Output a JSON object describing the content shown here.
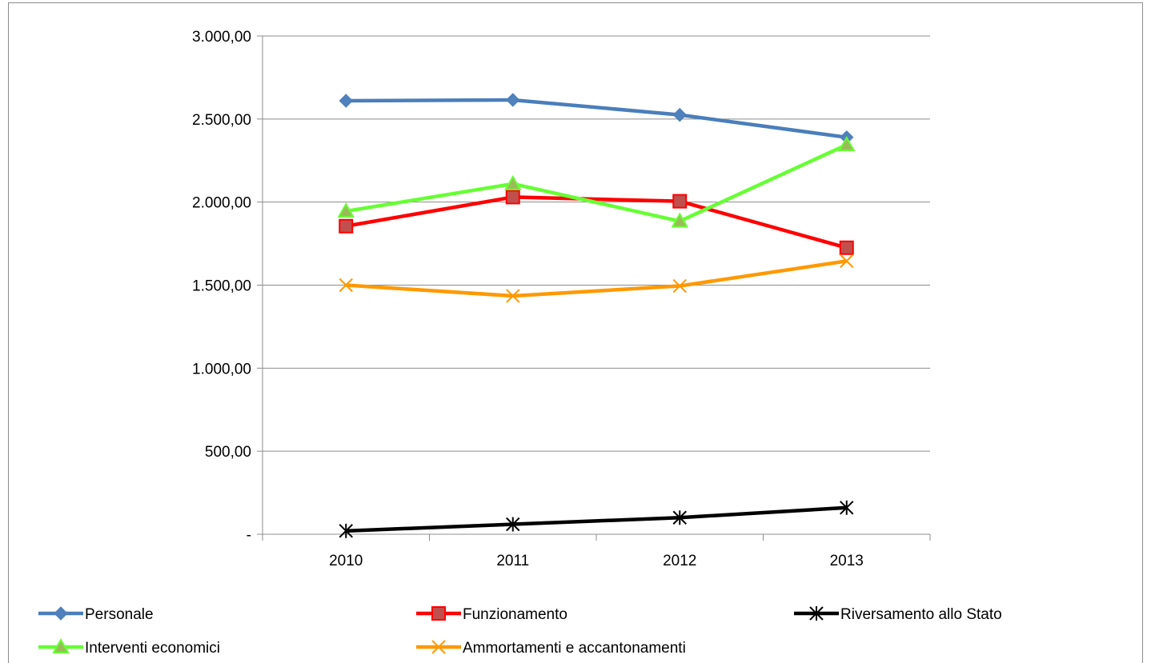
{
  "chart_data": {
    "type": "line",
    "title": "",
    "xlabel": "",
    "ylabel": "",
    "categories": [
      "2010",
      "2011",
      "2012",
      "2013"
    ],
    "ylim": [
      0,
      3000
    ],
    "yticks": [
      0,
      500,
      1000,
      1500,
      2000,
      2500,
      3000
    ],
    "ytick_labels": [
      "-",
      "500,00",
      "1.000,00",
      "1.500,00",
      "2.000,00",
      "2.500,00",
      "3.000,00"
    ],
    "grid": true,
    "legend_position": "bottom",
    "series": [
      {
        "name": "Personale",
        "values": [
          2610,
          2615,
          2525,
          2390
        ],
        "color": "#4a7ebb",
        "marker": "diamond"
      },
      {
        "name": "Funzionamento",
        "values": [
          1855,
          2030,
          2005,
          1725
        ],
        "color": "#ff0000",
        "marker": "square"
      },
      {
        "name": "Riversamento  allo Stato",
        "values": [
          20,
          60,
          100,
          160
        ],
        "color": "#000000",
        "marker": "asterisk"
      },
      {
        "name": "Interventi economici",
        "values": [
          1945,
          2110,
          1885,
          2345
        ],
        "color": "#66ff33",
        "marker": "triangle"
      },
      {
        "name": "Ammortamenti e accantonamenti",
        "values": [
          1500,
          1435,
          1495,
          1645
        ],
        "color": "#ff9900",
        "marker": "x"
      }
    ]
  }
}
